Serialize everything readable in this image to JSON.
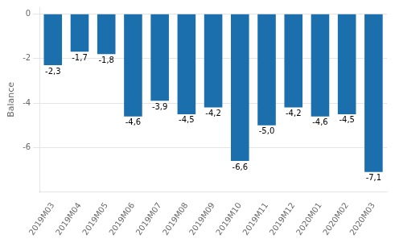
{
  "chart_data": {
    "type": "bar",
    "ylabel": "Balance",
    "categories": [
      "2019M03",
      "2019M04",
      "2019M05",
      "2019M06",
      "2019M07",
      "2019M08",
      "2019M09",
      "2019M10",
      "2019M11",
      "2019M12",
      "2020M01",
      "2020M02",
      "2020M03"
    ],
    "values": [
      -2.3,
      -1.7,
      -1.8,
      -4.6,
      -3.9,
      -4.5,
      -4.2,
      -6.6,
      -5.0,
      -4.2,
      -4.6,
      -4.5,
      -7.1
    ],
    "value_labels": [
      "-2,3",
      "-1,7",
      "-1,8",
      "-4,6",
      "-3,9",
      "-4,5",
      "-4,2",
      "-6,6",
      "-5,0",
      "-4,2",
      "-4,6",
      "-4,5",
      "-7,1"
    ],
    "data_labels": true,
    "color": "#1B6FAD",
    "ylim": [
      -8.0,
      0.3
    ],
    "yticks": [
      0,
      -2,
      -4,
      -6
    ],
    "grid": true
  }
}
